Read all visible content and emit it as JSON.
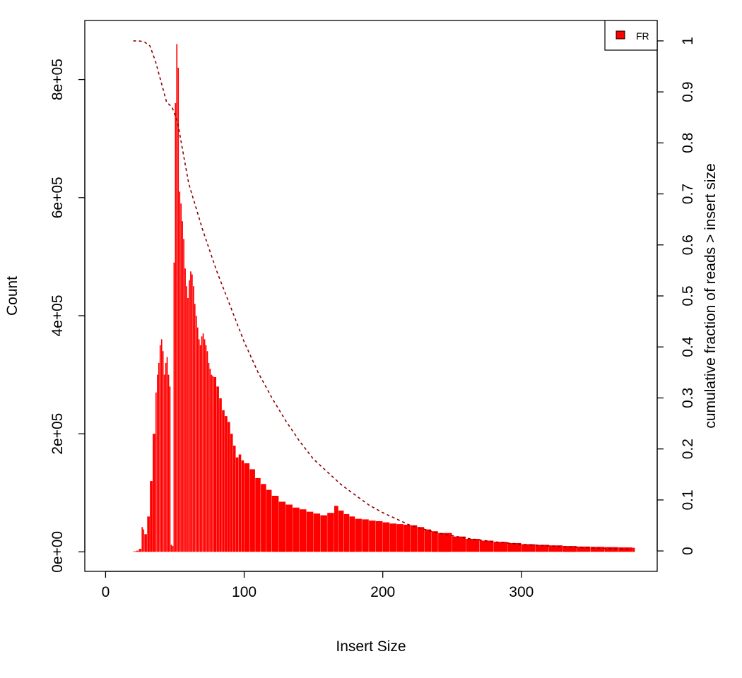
{
  "chart_data": {
    "type": "bar",
    "title": "",
    "xlabel": "Insert Size",
    "ylabel": "Count",
    "y2label": "cumulative fraction of reads > insert size",
    "xlim": [
      -15,
      398
    ],
    "ylim": [
      -33000,
      900000
    ],
    "y2lim": [
      -0.04,
      1.04
    ],
    "x_ticks": [
      0,
      100,
      200,
      300
    ],
    "x_tick_labels": [
      "0",
      "100",
      "200",
      "300"
    ],
    "y_ticks": [
      0,
      200000,
      400000,
      600000,
      800000
    ],
    "y_tick_labels": [
      "0e+00",
      "2e+05",
      "4e+05",
      "6e+05",
      "8e+05"
    ],
    "y2_ticks": [
      0,
      0.1,
      0.2,
      0.3,
      0.4,
      0.5,
      0.6,
      0.7,
      0.8,
      0.9,
      1
    ],
    "y2_tick_labels": [
      "0",
      "0.1",
      "0.2",
      "0.3",
      "0.4",
      "0.5",
      "0.6",
      "0.7",
      "0.8",
      "0.9",
      "1"
    ],
    "legend": {
      "position": "top-right",
      "entries": [
        {
          "label": "FR",
          "color": "#ff0000"
        }
      ]
    },
    "bar_color": "#ff0000",
    "cumulative_color": "#8b0000",
    "series": [
      {
        "name": "FR",
        "x": [
          20,
          22,
          24,
          26,
          27,
          28,
          30,
          32,
          34,
          36,
          37,
          38,
          39,
          40,
          41,
          42,
          43,
          44,
          45,
          46,
          47,
          48,
          49,
          50,
          51,
          52,
          53,
          54,
          55,
          56,
          57,
          58,
          59,
          60,
          61,
          62,
          63,
          64,
          65,
          66,
          67,
          68,
          69,
          70,
          71,
          72,
          73,
          74,
          75,
          76,
          77,
          78,
          80,
          82,
          84,
          86,
          88,
          90,
          92,
          94,
          96,
          98,
          100,
          104,
          108,
          112,
          116,
          120,
          125,
          130,
          135,
          140,
          145,
          150,
          155,
          160,
          165,
          168,
          172,
          176,
          180,
          185,
          190,
          195,
          200,
          205,
          210,
          215,
          220,
          225,
          230,
          235,
          240,
          250,
          260,
          270,
          280,
          290,
          300,
          310,
          320,
          330,
          340,
          350,
          360,
          370,
          380
        ],
        "values": [
          1000,
          2000,
          5000,
          42000,
          38000,
          30000,
          60000,
          120000,
          200000,
          270000,
          300000,
          320000,
          350000,
          360000,
          340000,
          300000,
          320000,
          330000,
          300000,
          280000,
          12000,
          10000,
          490000,
          760000,
          860000,
          820000,
          610000,
          590000,
          560000,
          530000,
          480000,
          450000,
          430000,
          460000,
          475000,
          470000,
          450000,
          420000,
          400000,
          380000,
          360000,
          350000,
          365000,
          370000,
          360000,
          350000,
          340000,
          320000,
          310000,
          300000,
          298000,
          296000,
          280000,
          260000,
          240000,
          230000,
          220000,
          200000,
          180000,
          160000,
          165000,
          155000,
          150000,
          140000,
          125000,
          115000,
          105000,
          95000,
          85000,
          80000,
          75000,
          72000,
          68000,
          65000,
          62000,
          66000,
          78000,
          70000,
          64000,
          60000,
          56000,
          55000,
          53000,
          52000,
          50000,
          48000,
          47000,
          46000,
          45000,
          42000,
          38000,
          35000,
          32000,
          26000,
          22000,
          19000,
          17000,
          15000,
          13000,
          12000,
          11000,
          10000,
          9000,
          8500,
          8000,
          7500,
          7000
        ]
      },
      {
        "name": "cumulative",
        "x": [
          20,
          24,
          28,
          32,
          36,
          40,
          44,
          48,
          52,
          56,
          60,
          70,
          80,
          90,
          100,
          110,
          120,
          130,
          140,
          150,
          160,
          170,
          180,
          190,
          200,
          220,
          240,
          260,
          280,
          300,
          320,
          340,
          360,
          380
        ],
        "values": [
          1.0,
          1.0,
          0.998,
          0.99,
          0.96,
          0.92,
          0.88,
          0.87,
          0.84,
          0.78,
          0.72,
          0.63,
          0.55,
          0.48,
          0.41,
          0.35,
          0.3,
          0.255,
          0.215,
          0.18,
          0.155,
          0.13,
          0.11,
          0.09,
          0.075,
          0.05,
          0.035,
          0.025,
          0.018,
          0.013,
          0.01,
          0.007,
          0.005,
          0.003
        ]
      }
    ]
  }
}
